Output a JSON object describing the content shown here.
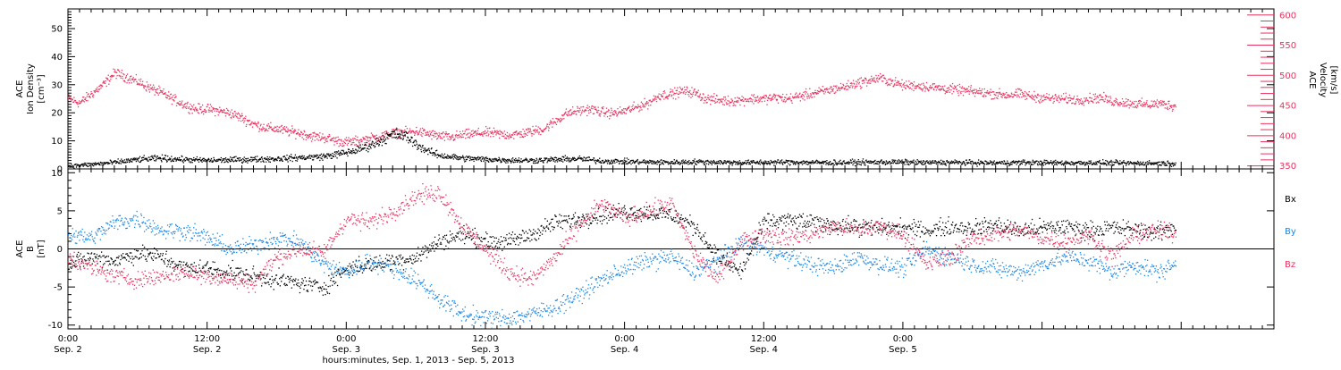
{
  "chart_data": [
    {
      "type": "scatter",
      "ylabel_lines": [
        "ACE",
        "Ion Density",
        "[cm⁻³]"
      ],
      "ylim": [
        0,
        57
      ],
      "yticks": [
        0,
        10,
        20,
        30,
        40,
        50
      ],
      "y2label_lines": [
        "ACE",
        "Velocity",
        "[km/s]"
      ],
      "y2lim": [
        345,
        610
      ],
      "y2ticks": [
        350,
        400,
        450,
        500,
        550,
        600
      ],
      "color_density": "#000000",
      "color_velocity": "#e8335f",
      "series": [
        {
          "axis": "left",
          "x_hours": [
            0,
            2,
            4,
            6,
            8,
            10,
            12,
            14,
            16,
            18,
            20,
            22,
            24,
            25,
            26,
            27,
            28,
            29,
            30,
            31,
            32,
            33,
            34,
            36,
            38,
            40,
            42,
            44,
            46,
            48,
            50,
            52,
            54,
            56,
            58,
            60,
            62,
            64,
            66,
            68,
            70,
            72,
            74,
            76,
            78,
            80,
            82,
            84,
            86,
            88,
            90,
            92,
            94,
            95.5
          ],
          "values": [
            1.2,
            1.8,
            2.5,
            3.5,
            4.0,
            3.5,
            3.2,
            3.4,
            3.6,
            3.8,
            4.2,
            4.6,
            6.0,
            7.0,
            8.5,
            10.5,
            12.5,
            12.0,
            9.0,
            6.5,
            5.0,
            4.5,
            4.0,
            3.6,
            3.3,
            3.2,
            3.5,
            3.8,
            3.0,
            2.8,
            2.6,
            2.5,
            2.7,
            2.6,
            2.4,
            2.5,
            2.6,
            2.5,
            2.4,
            2.5,
            2.6,
            2.6,
            2.4,
            2.5,
            2.4,
            2.3,
            2.5,
            2.4,
            2.3,
            2.4,
            2.3,
            2.2,
            2.2,
            2.1
          ]
        },
        {
          "axis": "right",
          "x_hours": [
            0,
            1,
            2,
            3,
            4,
            5,
            6,
            7,
            8,
            9,
            10,
            11,
            12,
            13,
            14,
            15,
            16,
            17,
            18,
            19,
            20,
            21,
            22,
            23,
            24,
            25,
            26,
            27,
            28,
            29,
            30,
            31,
            32,
            33,
            34,
            35,
            36,
            37,
            38,
            39,
            40,
            41,
            42,
            43,
            44,
            45,
            46,
            47,
            48,
            49,
            50,
            51,
            52,
            53,
            54,
            55,
            56,
            57,
            58,
            59,
            60,
            61,
            62,
            63,
            64,
            65,
            66,
            67,
            68,
            69,
            70,
            71,
            72,
            73,
            74,
            75,
            76,
            77,
            78,
            79,
            80,
            81,
            82,
            83,
            84,
            85,
            86,
            87,
            88,
            89,
            90,
            91,
            92,
            93,
            94,
            95.5
          ],
          "values": [
            462,
            455,
            470,
            485,
            505,
            498,
            490,
            480,
            472,
            462,
            452,
            445,
            445,
            442,
            438,
            430,
            420,
            414,
            412,
            408,
            405,
            400,
            398,
            393,
            390,
            392,
            396,
            400,
            405,
            406,
            408,
            404,
            400,
            398,
            402,
            404,
            406,
            404,
            402,
            404,
            408,
            412,
            425,
            438,
            442,
            445,
            440,
            438,
            442,
            448,
            455,
            468,
            470,
            475,
            472,
            462,
            460,
            458,
            460,
            462,
            462,
            464,
            462,
            466,
            470,
            474,
            478,
            482,
            488,
            492,
            496,
            490,
            484,
            484,
            482,
            480,
            478,
            476,
            474,
            472,
            470,
            468,
            470,
            466,
            464,
            462,
            462,
            460,
            462,
            464,
            458,
            456,
            454,
            452,
            454,
            450
          ]
        }
      ]
    },
    {
      "type": "scatter",
      "ylabel_lines": [
        "ACE",
        "B",
        "[nT]"
      ],
      "ylim": [
        -10.5,
        10.5
      ],
      "yticks": [
        -10,
        -5,
        0,
        5,
        10
      ],
      "zero_line": true,
      "legend": [
        "Bx",
        "By",
        "Bz"
      ],
      "series": [
        {
          "name": "Bx",
          "color": "#000000",
          "x_hours": [
            0,
            2,
            4,
            6,
            8,
            10,
            12,
            14,
            16,
            18,
            20,
            22,
            24,
            26,
            28,
            30,
            32,
            34,
            36,
            38,
            40,
            42,
            44,
            46,
            48,
            50,
            52,
            54,
            56,
            58,
            60,
            62,
            64,
            66,
            68,
            70,
            72,
            74,
            76,
            78,
            80,
            82,
            84,
            86,
            88,
            90,
            92,
            94,
            95.5
          ],
          "values": [
            -2.0,
            -1.0,
            -1.5,
            -0.5,
            -1.0,
            -2.5,
            -2.5,
            -3.0,
            -3.5,
            -4.0,
            -4.5,
            -5.0,
            -2.5,
            -2.0,
            -1.5,
            -1.0,
            1.0,
            2.0,
            1.0,
            1.0,
            2.0,
            3.5,
            4.0,
            4.5,
            5.0,
            4.8,
            4.5,
            3.0,
            -1.0,
            -3.0,
            3.5,
            3.8,
            3.5,
            3.2,
            3.0,
            2.8,
            2.8,
            2.5,
            3.0,
            2.8,
            3.2,
            2.5,
            2.8,
            3.0,
            2.5,
            2.8,
            2.6,
            2.2,
            3.0
          ]
        },
        {
          "name": "By",
          "color": "#1a87e6",
          "x_hours": [
            0,
            2,
            4,
            6,
            8,
            10,
            12,
            14,
            16,
            18,
            20,
            22,
            24,
            26,
            28,
            30,
            32,
            34,
            36,
            38,
            40,
            42,
            44,
            46,
            48,
            50,
            52,
            54,
            56,
            58,
            60,
            62,
            64,
            66,
            68,
            70,
            72,
            74,
            76,
            78,
            80,
            82,
            84,
            86,
            88,
            90,
            92,
            94,
            95.5
          ],
          "values": [
            2.0,
            1.5,
            3.5,
            4.0,
            2.5,
            2.5,
            1.5,
            0.0,
            0.5,
            1.5,
            1.0,
            -2.0,
            -3.0,
            -1.5,
            -2.5,
            -4.0,
            -6.5,
            -8.5,
            -9.0,
            -9.0,
            -8.5,
            -7.5,
            -6.0,
            -4.0,
            -2.5,
            -1.5,
            -1.0,
            -3.0,
            -1.5,
            1.0,
            0.0,
            -1.0,
            -2.0,
            -2.5,
            -1.0,
            -2.0,
            -2.5,
            0.0,
            -1.0,
            -2.0,
            -2.5,
            -3.0,
            -2.0,
            -1.0,
            -1.5,
            -3.0,
            -2.0,
            -3.0,
            -2.0
          ]
        },
        {
          "name": "Bz",
          "color": "#e8335f",
          "x_hours": [
            0,
            2,
            4,
            6,
            8,
            10,
            12,
            14,
            16,
            18,
            20,
            22,
            24,
            26,
            28,
            30,
            32,
            34,
            36,
            38,
            40,
            42,
            44,
            46,
            48,
            50,
            52,
            54,
            56,
            58,
            60,
            62,
            64,
            66,
            68,
            70,
            72,
            74,
            76,
            78,
            80,
            82,
            84,
            86,
            88,
            90,
            92,
            94,
            95.5
          ],
          "values": [
            -1.0,
            -2.5,
            -3.5,
            -4.0,
            -3.5,
            -3.0,
            -3.5,
            -4.0,
            -4.5,
            -1.0,
            0.0,
            -0.5,
            4.0,
            3.5,
            5.0,
            7.0,
            7.5,
            3.0,
            0.0,
            -3.0,
            -4.0,
            -1.0,
            3.0,
            6.0,
            4.0,
            5.0,
            6.0,
            -0.5,
            -4.0,
            1.0,
            2.0,
            1.5,
            2.0,
            3.0,
            2.5,
            3.0,
            2.0,
            -2.0,
            -1.0,
            1.5,
            2.0,
            2.5,
            1.5,
            1.0,
            2.0,
            -1.0,
            2.0,
            2.5,
            2.0
          ]
        }
      ]
    }
  ],
  "x_axis": {
    "xlim_hours": [
      0,
      104
    ],
    "major_ticks": [
      {
        "h": 0,
        "time": "0:00",
        "date": "Sep. 2"
      },
      {
        "h": 12,
        "time": "12:00",
        "date": "Sep. 2"
      },
      {
        "h": 24,
        "time": "0:00",
        "date": "Sep. 3"
      },
      {
        "h": 36,
        "time": "12:00",
        "date": "Sep. 3"
      },
      {
        "h": 48,
        "time": "0:00",
        "date": "Sep. 4"
      },
      {
        "h": 60,
        "time": "12:00",
        "date": "Sep. 4"
      },
      {
        "h": 72,
        "time": "0:00",
        "date": "Sep. 5"
      }
    ],
    "label": "hours:minutes, Sep.  1, 2013 - Sep.  5, 2013"
  }
}
